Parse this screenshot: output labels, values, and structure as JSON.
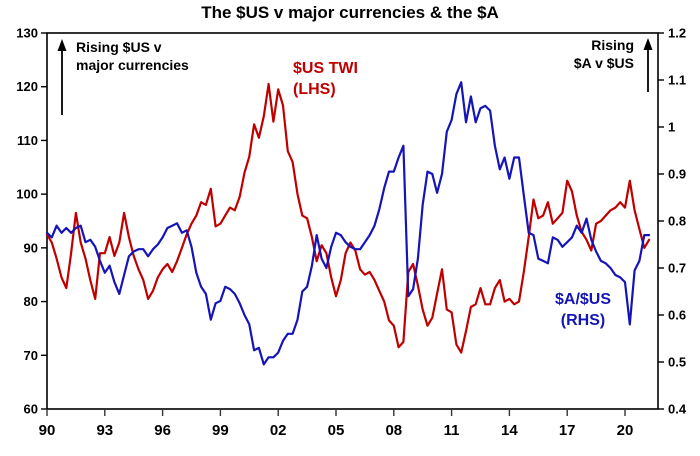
{
  "title": "The $US v major currencies & the $A",
  "annotations": {
    "left": {
      "line1": "Rising $US v",
      "line2": "major currencies",
      "icon": "up-arrow"
    },
    "right": {
      "line1": "Rising",
      "line2": "$A v $US",
      "icon": "up-arrow"
    }
  },
  "series_labels": {
    "red": {
      "line1": "$US TWI",
      "line2": "(LHS)"
    },
    "blue": {
      "line1": "$A/$US",
      "line2": "(RHS)"
    }
  },
  "colors": {
    "red_series": "#c00000",
    "blue_series": "#1414b8",
    "axis": "#000000",
    "tick": "#333333",
    "text": "#000000",
    "background": "#ffffff"
  },
  "chart_data": {
    "type": "line",
    "title": "The $US v major currencies & the $A",
    "grid": false,
    "legend_position": "inline-labels",
    "x_axis": {
      "tick_labels": [
        "90",
        "93",
        "96",
        "99",
        "02",
        "05",
        "08",
        "11",
        "14",
        "17",
        "20"
      ],
      "tick_years": [
        1990,
        1993,
        1996,
        1999,
        2002,
        2005,
        2008,
        2011,
        2014,
        2017,
        2020
      ],
      "range": [
        1990,
        2021.7
      ]
    },
    "left_axis": {
      "series": "$US TWI",
      "ticks": [
        130,
        120,
        110,
        100,
        90,
        80,
        70,
        60
      ],
      "range": [
        60,
        130
      ]
    },
    "right_axis": {
      "series": "$A/$US",
      "ticks": [
        "1.2",
        "1.1",
        "1",
        "0.9",
        "0.8",
        "0.7",
        "0.6",
        "0.5",
        "0.4"
      ],
      "range": [
        0.4,
        1.2
      ]
    },
    "x_start": 1990,
    "x_step": 0.25,
    "series": [
      {
        "name": "$US TWI",
        "axis": "left",
        "color": "#c00000",
        "values": [
          92.5,
          91,
          88,
          84.5,
          82.5,
          89,
          96.5,
          91,
          88,
          84,
          80.5,
          89,
          89,
          92,
          88.5,
          91,
          96.5,
          92,
          88.5,
          86,
          84,
          80.5,
          82,
          84.5,
          86,
          87,
          85.5,
          87.5,
          90,
          92.5,
          94.5,
          96,
          98.5,
          98,
          101,
          94,
          94.5,
          96,
          97.5,
          97,
          99.5,
          104,
          107,
          113,
          110.5,
          114.5,
          120.5,
          113.5,
          119.5,
          116.5,
          108,
          106,
          100,
          96,
          95.5,
          92,
          87.5,
          90.5,
          89,
          84.5,
          81,
          84,
          89,
          91,
          89.5,
          86,
          85,
          85.5,
          84,
          82,
          80,
          76.5,
          75.5,
          71.5,
          72.5,
          85.5,
          87,
          83,
          78.5,
          75.5,
          77,
          81.5,
          86,
          78.5,
          78,
          72,
          70.5,
          74.5,
          79,
          79.5,
          82.5,
          79.5,
          79.5,
          82.5,
          84,
          80,
          80.5,
          79.5,
          80,
          85.5,
          92,
          99,
          95.5,
          96,
          98.5,
          94.5,
          95.5,
          96.5,
          102.5,
          100.5,
          96,
          93,
          91.5,
          89.5,
          94.5,
          95,
          96,
          97,
          97.5,
          98.5,
          97.5,
          102.5,
          97,
          93.5,
          90,
          91.5
        ]
      },
      {
        "name": "$A/$US",
        "axis": "right",
        "color": "#1414b8",
        "values": [
          0.775,
          0.765,
          0.79,
          0.775,
          0.785,
          0.775,
          0.785,
          0.79,
          0.755,
          0.76,
          0.745,
          0.715,
          0.69,
          0.705,
          0.67,
          0.645,
          0.685,
          0.725,
          0.735,
          0.74,
          0.74,
          0.725,
          0.74,
          0.75,
          0.765,
          0.785,
          0.79,
          0.795,
          0.775,
          0.78,
          0.745,
          0.69,
          0.66,
          0.645,
          0.59,
          0.625,
          0.63,
          0.66,
          0.655,
          0.645,
          0.625,
          0.6,
          0.58,
          0.525,
          0.53,
          0.495,
          0.51,
          0.51,
          0.52,
          0.545,
          0.56,
          0.56,
          0.59,
          0.65,
          0.66,
          0.705,
          0.77,
          0.72,
          0.7,
          0.745,
          0.775,
          0.77,
          0.755,
          0.745,
          0.74,
          0.74,
          0.755,
          0.77,
          0.79,
          0.825,
          0.87,
          0.905,
          0.905,
          0.935,
          0.96,
          0.64,
          0.655,
          0.72,
          0.835,
          0.905,
          0.9,
          0.86,
          0.9,
          0.99,
          1.015,
          1.07,
          1.095,
          1.01,
          1.065,
          1.01,
          1.04,
          1.045,
          1.035,
          0.96,
          0.91,
          0.935,
          0.89,
          0.935,
          0.935,
          0.855,
          0.775,
          0.77,
          0.72,
          0.715,
          0.71,
          0.765,
          0.76,
          0.745,
          0.755,
          0.765,
          0.79,
          0.775,
          0.805,
          0.76,
          0.735,
          0.715,
          0.71,
          0.7,
          0.685,
          0.68,
          0.67,
          0.58,
          0.695,
          0.715,
          0.77,
          0.77
        ]
      }
    ]
  }
}
